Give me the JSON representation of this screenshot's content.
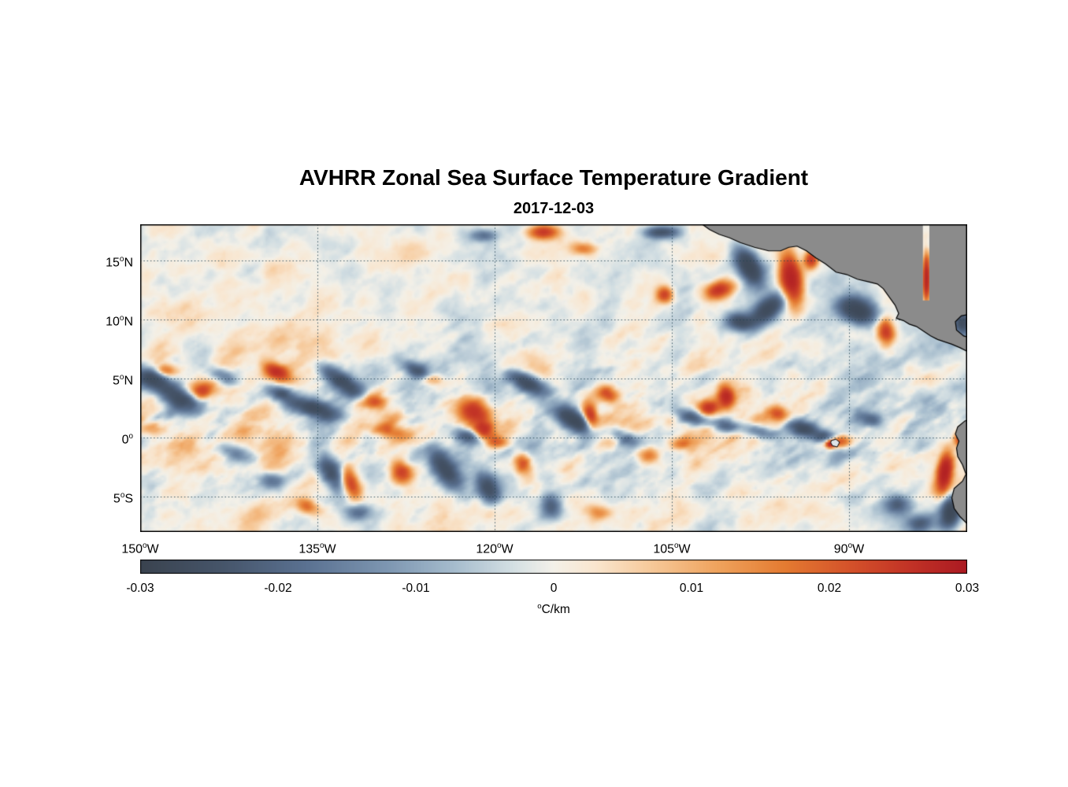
{
  "figure": {
    "title": "AVHRR Zonal Sea Surface Temperature Gradient",
    "subtitle": "2017-12-03"
  },
  "chart_data": {
    "type": "heatmap",
    "title": "AVHRR Zonal Sea Surface Temperature Gradient",
    "date": "2017-12-03",
    "variable": "Zonal sea surface temperature gradient",
    "units": "°C/km",
    "grid": "dotted",
    "x_axis": {
      "ticks": [
        {
          "value": 150,
          "label": "150°W"
        },
        {
          "value": 135,
          "label": "135°W"
        },
        {
          "value": 120,
          "label": "120°W"
        },
        {
          "value": 105,
          "label": "105°W"
        },
        {
          "value": 90,
          "label": "90°W"
        }
      ],
      "range": {
        "west": 150,
        "east": 80
      }
    },
    "y_axis": {
      "ticks": [
        {
          "value": 15,
          "label": "15°N"
        },
        {
          "value": 10,
          "label": "10°N"
        },
        {
          "value": 5,
          "label": "5°N"
        },
        {
          "value": 0,
          "label": "0°"
        },
        {
          "value": -5,
          "label": "5°S"
        }
      ],
      "range": {
        "south": -8.0,
        "north": 18.05
      }
    },
    "colorbar": {
      "min": -0.03,
      "max": 0.03,
      "ticks": [
        "-0.03",
        "-0.02",
        "-0.01",
        "0",
        "0.01",
        "0.02",
        "0.03"
      ],
      "tick_values": [
        -0.03,
        -0.02,
        -0.01,
        0,
        0.01,
        0.02,
        0.03
      ],
      "label": "°C/km",
      "stops": [
        [
          0.0,
          "#3a434f"
        ],
        [
          0.1,
          "#46556a"
        ],
        [
          0.2,
          "#5a7191"
        ],
        [
          0.3,
          "#7e97b2"
        ],
        [
          0.38,
          "#a6bccd"
        ],
        [
          0.45,
          "#d3dfe3"
        ],
        [
          0.5,
          "#f4f1e9"
        ],
        [
          0.55,
          "#f9e6cf"
        ],
        [
          0.62,
          "#f6c898"
        ],
        [
          0.7,
          "#efa25c"
        ],
        [
          0.78,
          "#e47b31"
        ],
        [
          0.86,
          "#d4512a"
        ],
        [
          0.93,
          "#c23326"
        ],
        [
          1.0,
          "#ab1a22"
        ]
      ]
    },
    "land_color": "#8b8b8b",
    "coast_color": "#000000",
    "land_masses": [
      "Mexico and Central America",
      "South America (Ecuador / Peru coast)",
      "Galapagos Islands"
    ],
    "land_polygons": {
      "central_america": [
        [
          102.5,
          18.1
        ],
        [
          101.8,
          17.6
        ],
        [
          101.0,
          17.2
        ],
        [
          100.1,
          16.9
        ],
        [
          99.2,
          16.5
        ],
        [
          98.0,
          16.1
        ],
        [
          96.8,
          15.8
        ],
        [
          95.8,
          15.8
        ],
        [
          95.1,
          16.1
        ],
        [
          94.4,
          16.2
        ],
        [
          93.6,
          15.8
        ],
        [
          92.8,
          15.2
        ],
        [
          92.0,
          14.7
        ],
        [
          91.1,
          14.0
        ],
        [
          90.2,
          13.8
        ],
        [
          89.3,
          13.4
        ],
        [
          88.4,
          13.2
        ],
        [
          87.6,
          13.0
        ],
        [
          87.1,
          12.6
        ],
        [
          86.6,
          11.9
        ],
        [
          86.1,
          11.2
        ],
        [
          85.8,
          10.5
        ],
        [
          86.0,
          10.1
        ],
        [
          85.4,
          9.9
        ],
        [
          84.9,
          9.6
        ],
        [
          84.3,
          9.4
        ],
        [
          83.7,
          9.0
        ],
        [
          83.1,
          8.6
        ],
        [
          82.5,
          8.3
        ],
        [
          81.9,
          8.1
        ],
        [
          81.3,
          7.9
        ],
        [
          80.6,
          7.6
        ],
        [
          80.0,
          7.3
        ],
        [
          79.0,
          7.0
        ],
        [
          79.0,
          8.2
        ],
        [
          80.3,
          8.6
        ],
        [
          80.9,
          9.1
        ],
        [
          81.0,
          9.8
        ],
        [
          80.5,
          10.3
        ],
        [
          79.0,
          10.6
        ],
        [
          79.0,
          18.1
        ]
      ],
      "south_america": [
        [
          79.0,
          1.8
        ],
        [
          80.2,
          1.4
        ],
        [
          80.8,
          0.9
        ],
        [
          81.0,
          0.3
        ],
        [
          80.7,
          -0.3
        ],
        [
          80.9,
          -0.9
        ],
        [
          80.8,
          -1.6
        ],
        [
          80.4,
          -2.3
        ],
        [
          80.1,
          -3.1
        ],
        [
          80.4,
          -3.7
        ],
        [
          81.1,
          -4.3
        ],
        [
          81.3,
          -5.1
        ],
        [
          81.1,
          -6.0
        ],
        [
          80.6,
          -6.7
        ],
        [
          80.0,
          -7.3
        ],
        [
          79.7,
          -8.2
        ],
        [
          79.0,
          -8.2
        ]
      ],
      "galapagos": [
        [
          91.5,
          -0.25
        ],
        [
          91.1,
          -0.15
        ],
        [
          90.8,
          -0.4
        ],
        [
          91.0,
          -0.8
        ],
        [
          91.4,
          -0.7
        ],
        [
          91.55,
          -0.45
        ]
      ],
      "data_gap": [
        [
          83.75,
          18.1
        ],
        [
          83.2,
          18.1
        ],
        [
          83.2,
          11.6
        ],
        [
          83.75,
          11.6
        ]
      ]
    },
    "features_format": "lonW_deg, latN_deg, amplitude(-1..1 of colorbar range), radius_lon_deg, radius_lat_deg, angle_deg",
    "features": [
      [
        149.0,
        5.0,
        -0.9,
        1.6,
        0.8,
        20
      ],
      [
        146.8,
        3.4,
        -0.95,
        1.8,
        0.9,
        25
      ],
      [
        147.9,
        5.7,
        0.6,
        0.9,
        0.5,
        0
      ],
      [
        144.8,
        3.9,
        0.8,
        1.0,
        0.7,
        -15
      ],
      [
        148.9,
        0.8,
        0.45,
        1.2,
        0.6,
        0
      ],
      [
        143.0,
        5.2,
        -0.5,
        1.2,
        0.6,
        25
      ],
      [
        141.9,
        -1.3,
        -0.5,
        1.5,
        0.7,
        20
      ],
      [
        138.5,
        5.6,
        0.85,
        1.1,
        0.6,
        25
      ],
      [
        138.2,
        3.8,
        -0.7,
        1.3,
        0.6,
        20
      ],
      [
        135.1,
        2.4,
        -1.0,
        1.9,
        0.7,
        15
      ],
      [
        133.0,
        4.8,
        -0.9,
        2.0,
        0.7,
        35
      ],
      [
        130.2,
        3.0,
        0.65,
        0.9,
        0.6,
        0
      ],
      [
        133.9,
        -2.9,
        -0.9,
        0.9,
        1.6,
        -30
      ],
      [
        132.2,
        -3.9,
        0.9,
        0.7,
        1.4,
        -20
      ],
      [
        138.9,
        -3.6,
        -0.55,
        1.1,
        0.7,
        0
      ],
      [
        135.9,
        -5.8,
        0.6,
        1.0,
        0.6,
        15
      ],
      [
        131.6,
        -6.3,
        -0.5,
        1.1,
        0.7,
        0
      ],
      [
        128.8,
        0.5,
        0.5,
        1.5,
        0.6,
        10
      ],
      [
        127.9,
        -2.9,
        0.85,
        0.9,
        1.1,
        -25
      ],
      [
        126.5,
        5.6,
        -0.65,
        1.4,
        0.6,
        30
      ],
      [
        125.4,
        4.9,
        0.55,
        0.9,
        0.5,
        0
      ],
      [
        124.2,
        -2.7,
        -0.95,
        0.9,
        1.9,
        -35
      ],
      [
        122.3,
        0.1,
        -0.7,
        1.4,
        0.6,
        15
      ],
      [
        121.9,
        2.4,
        1.0,
        1.3,
        1.1,
        0
      ],
      [
        120.9,
        0.6,
        0.9,
        0.8,
        0.9,
        -20
      ],
      [
        120.9,
        17.1,
        -0.5,
        1.1,
        0.5,
        0
      ],
      [
        120.6,
        -4.2,
        -0.85,
        0.9,
        1.4,
        -30
      ],
      [
        119.8,
        -0.4,
        0.6,
        0.9,
        0.5,
        0
      ],
      [
        117.6,
        -2.2,
        0.75,
        0.7,
        0.9,
        -15
      ],
      [
        117.2,
        4.6,
        -1.0,
        1.8,
        0.7,
        25
      ],
      [
        115.9,
        17.4,
        0.95,
        1.3,
        0.6,
        0
      ],
      [
        115.2,
        -5.8,
        -0.7,
        0.8,
        1.0,
        -20
      ],
      [
        113.3,
        1.5,
        -1.1,
        1.8,
        0.8,
        30
      ],
      [
        112.5,
        16.0,
        0.5,
        1.0,
        0.5,
        0
      ],
      [
        111.9,
        1.8,
        1.05,
        0.6,
        1.0,
        -10
      ],
      [
        111.2,
        -6.3,
        0.5,
        1.0,
        0.6,
        0
      ],
      [
        110.4,
        3.7,
        0.7,
        0.9,
        0.6,
        20
      ],
      [
        109.0,
        0.0,
        -0.6,
        1.2,
        0.6,
        20
      ],
      [
        107.0,
        -1.5,
        0.55,
        0.9,
        0.7,
        0
      ],
      [
        105.9,
        17.4,
        -0.8,
        1.4,
        0.5,
        0
      ],
      [
        105.6,
        12.1,
        0.85,
        0.7,
        0.7,
        0
      ],
      [
        104.0,
        -0.5,
        0.5,
        1.0,
        0.6,
        0
      ],
      [
        103.2,
        1.7,
        -0.8,
        1.3,
        0.6,
        15
      ],
      [
        101.9,
        2.5,
        0.75,
        0.8,
        0.6,
        0
      ],
      [
        101.0,
        12.5,
        0.9,
        1.2,
        0.7,
        -20
      ],
      [
        100.4,
        1.0,
        -0.75,
        1.2,
        0.6,
        10
      ],
      [
        100.4,
        3.5,
        0.9,
        0.6,
        0.9,
        -10
      ],
      [
        99.3,
        9.8,
        -0.85,
        1.1,
        0.7,
        10
      ],
      [
        98.5,
        14.5,
        -1.25,
        0.9,
        1.7,
        -30
      ],
      [
        97.5,
        0.5,
        -0.7,
        1.5,
        0.6,
        12
      ],
      [
        96.9,
        10.8,
        -1.15,
        1.7,
        0.9,
        -40
      ],
      [
        96.0,
        2.0,
        0.6,
        0.8,
        0.6,
        0
      ],
      [
        94.9,
        13.4,
        1.5,
        0.9,
        2.1,
        -8
      ],
      [
        93.9,
        0.8,
        -0.9,
        1.2,
        0.6,
        10
      ],
      [
        93.2,
        15.1,
        1.0,
        0.6,
        0.8,
        0
      ],
      [
        92.1,
        0.1,
        -0.8,
        1.1,
        0.5,
        0
      ],
      [
        91.6,
        -0.55,
        1.0,
        0.35,
        0.3,
        0
      ],
      [
        90.8,
        -0.3,
        0.85,
        1.1,
        0.6,
        0
      ],
      [
        89.2,
        10.7,
        -1.2,
        1.6,
        1.0,
        20
      ],
      [
        88.2,
        1.5,
        -0.6,
        1.2,
        0.6,
        15
      ],
      [
        86.9,
        9.0,
        0.9,
        0.7,
        1.1,
        -10
      ],
      [
        85.9,
        -5.7,
        -0.6,
        1.1,
        0.8,
        0
      ],
      [
        84.0,
        -7.3,
        -0.6,
        1.3,
        0.7,
        0
      ],
      [
        83.45,
        13.5,
        1.2,
        0.3,
        1.9,
        0
      ],
      [
        81.9,
        -2.9,
        1.4,
        0.6,
        1.6,
        8
      ],
      [
        81.4,
        -6.3,
        -1.2,
        0.8,
        1.3,
        10
      ],
      [
        80.6,
        -0.1,
        0.8,
        0.5,
        0.6,
        0
      ],
      [
        80.4,
        9.7,
        -1.0,
        0.7,
        0.9,
        0
      ]
    ]
  }
}
